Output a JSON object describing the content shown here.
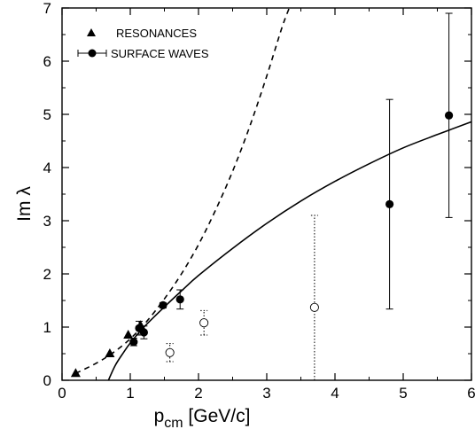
{
  "chart_data": {
    "type": "scatter",
    "ylabel": "Im λ",
    "xlabel": {
      "main": "p",
      "sub": "cm",
      "rest": " [GeV/c]"
    },
    "xlim": [
      0,
      6
    ],
    "ylim": [
      0,
      7
    ],
    "x_ticks": [
      0,
      1,
      2,
      3,
      4,
      5,
      6
    ],
    "y_ticks": [
      0,
      1,
      2,
      3,
      4,
      5,
      6,
      7
    ],
    "grid": false,
    "legend": {
      "placement": "top-left",
      "entries": [
        {
          "label": "RESONANCES",
          "marker": "triangle"
        },
        {
          "label": "SURFACE WAVES",
          "marker": "filled-circle-with-errorbar"
        }
      ]
    },
    "series": [
      {
        "name": "RESONANCES",
        "marker": "triangle",
        "points": [
          {
            "x": 0.2,
            "y": 0.13
          },
          {
            "x": 0.7,
            "y": 0.5
          },
          {
            "x": 0.97,
            "y": 0.85
          },
          {
            "x": 1.15,
            "y": 1.03
          }
        ]
      },
      {
        "name": "SURFACE WAVES",
        "marker": "filled-circle",
        "points": [
          {
            "x": 1.05,
            "y": 0.72,
            "err": 0.07
          },
          {
            "x": 1.13,
            "y": 0.98,
            "err": 0.13
          },
          {
            "x": 1.2,
            "y": 0.9,
            "err": 0.12
          },
          {
            "x": 1.48,
            "y": 1.41,
            "err": 0.05
          },
          {
            "x": 1.73,
            "y": 1.52,
            "err": 0.18
          },
          {
            "x": 4.8,
            "y": 3.31,
            "err_low": 1.97,
            "err_high": 1.97
          },
          {
            "x": 5.67,
            "y": 4.98,
            "err_low": 1.92,
            "err_high": 1.92
          }
        ]
      },
      {
        "marker": "open-circle-dotted-errorbar",
        "points": [
          {
            "x": 1.58,
            "y": 0.52,
            "err": 0.17
          },
          {
            "x": 2.08,
            "y": 1.08,
            "err": 0.23
          },
          {
            "x": 3.7,
            "y": 1.37,
            "err_low": 1.37,
            "err_high": 1.73
          }
        ]
      }
    ],
    "curves": [
      {
        "style": "dashed",
        "points": [
          [
            0.2,
            0.13
          ],
          [
            0.5,
            0.32
          ],
          [
            0.75,
            0.52
          ],
          [
            1.0,
            0.78
          ],
          [
            1.25,
            1.12
          ],
          [
            1.5,
            1.53
          ],
          [
            1.75,
            2.0
          ],
          [
            2.0,
            2.55
          ],
          [
            2.25,
            3.2
          ],
          [
            2.5,
            3.93
          ],
          [
            2.75,
            4.77
          ],
          [
            3.0,
            5.72
          ],
          [
            3.22,
            6.62
          ],
          [
            3.33,
            7.0
          ]
        ]
      },
      {
        "style": "solid",
        "points": [
          [
            0.68,
            0.0
          ],
          [
            0.78,
            0.28
          ],
          [
            0.9,
            0.52
          ],
          [
            1.0,
            0.7
          ],
          [
            1.2,
            1.0
          ],
          [
            1.5,
            1.38
          ],
          [
            1.75,
            1.68
          ],
          [
            2.0,
            1.97
          ],
          [
            2.5,
            2.48
          ],
          [
            3.0,
            2.95
          ],
          [
            3.5,
            3.37
          ],
          [
            4.0,
            3.74
          ],
          [
            4.5,
            4.07
          ],
          [
            5.0,
            4.37
          ],
          [
            5.5,
            4.62
          ],
          [
            6.0,
            4.86
          ]
        ]
      }
    ]
  }
}
